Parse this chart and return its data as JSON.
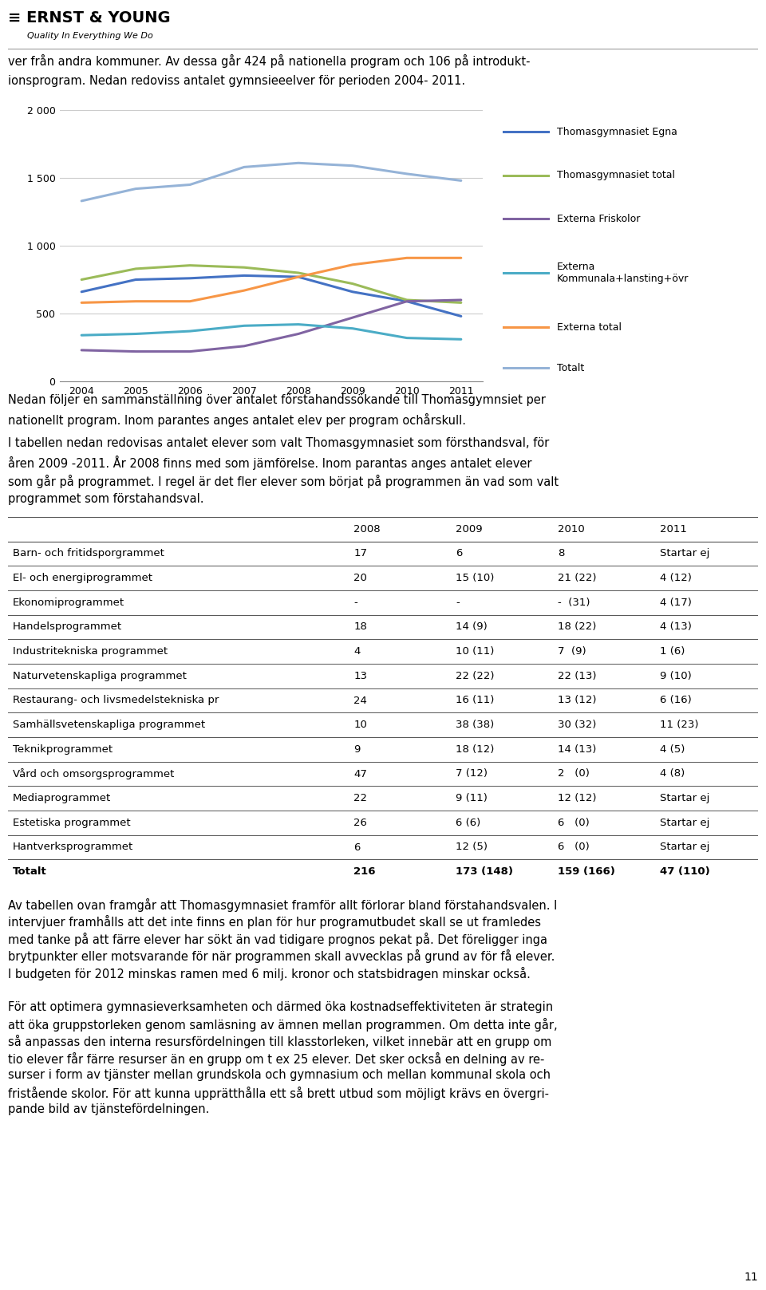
{
  "header_text1": "ver från andra kommuner. Av dessa går 424 på nationella program och 106 på introdukt-",
  "header_text2": "ionsprogram. Nedan redoviss antalet gymnsieeelver för perioden 2004- 2011.",
  "years": [
    2004,
    2005,
    2006,
    2007,
    2008,
    2009,
    2010,
    2011
  ],
  "series_order": [
    "Thomasgymnasiet Egna",
    "Thomasgymnasiet total",
    "Externa Friskolor",
    "Externa\nKommunala+lansting+övr",
    "Externa total",
    "Totalt"
  ],
  "series": {
    "Thomasgymnasiet Egna": {
      "values": [
        660,
        750,
        760,
        780,
        770,
        660,
        590,
        480
      ],
      "color": "#4472C4",
      "linewidth": 2.2
    },
    "Thomasgymnasiet total": {
      "values": [
        750,
        830,
        855,
        840,
        800,
        720,
        600,
        580
      ],
      "color": "#9BBB59",
      "linewidth": 2.2
    },
    "Externa Friskolor": {
      "values": [
        230,
        220,
        220,
        260,
        350,
        470,
        590,
        600
      ],
      "color": "#8064A2",
      "linewidth": 2.2
    },
    "Externa\nKommunala+lansting+övr": {
      "values": [
        340,
        350,
        370,
        410,
        420,
        390,
        320,
        310
      ],
      "color": "#4BACC6",
      "linewidth": 2.2
    },
    "Externa total": {
      "values": [
        580,
        590,
        590,
        670,
        770,
        860,
        910,
        910
      ],
      "color": "#F79646",
      "linewidth": 2.2
    },
    "Totalt": {
      "values": [
        1330,
        1420,
        1450,
        1580,
        1610,
        1590,
        1530,
        1480
      ],
      "color": "#95B3D7",
      "linewidth": 2.2
    }
  },
  "ylim": [
    0,
    2000
  ],
  "yticks": [
    0,
    500,
    1000,
    1500,
    2000
  ],
  "ytick_labels": [
    "0",
    "500",
    "1 000",
    "1 500",
    "2 000"
  ],
  "para_text1": "Nedan följer en sammanställning över antalet förstahandssökande till Thomasgymnsiet per",
  "para_text2": "nationellt program. Inom parantes anges antalet elev per program ochårskull.",
  "para_text3": "I tabellen nedan redovisas antalet elever som valt Thomasgymnasiet som försthandsval, för",
  "para_text4": "åren 2009 -2011. År 2008 finns med som jämförelse. Inom parantas anges antalet elever",
  "para_text5": "som går på programmet. I regel är det fler elever som börjat på programmen än vad som valt",
  "para_text6": "programmet som förstahandsval.",
  "table_headers": [
    "",
    "2008",
    "2009",
    "2010",
    "2011"
  ],
  "table_rows": [
    [
      "Barn- och fritidsporgrammet",
      "17",
      "6",
      "8",
      "Startar ej"
    ],
    [
      "El- och energiprogrammet",
      "20",
      "15 (10)",
      "21 (22)",
      "4 (12)"
    ],
    [
      "Ekonomiprogrammet",
      "-",
      "-",
      "-  (31)",
      "4 (17)"
    ],
    [
      "Handelsprogrammet",
      "18",
      "14 (9)",
      "18 (22)",
      "4 (13)"
    ],
    [
      "Industritekniska programmet",
      "4",
      "10 (11)",
      "7  (9)",
      "1 (6)"
    ],
    [
      "Naturvetenskapliga programmet",
      "13",
      "22 (22)",
      "22 (13)",
      "9 (10)"
    ],
    [
      "Restaurang- och livsmedelstekniska pr",
      "24",
      "16 (11)",
      "13 (12)",
      "6 (16)"
    ],
    [
      "Samhällsvetenskapliga programmet",
      "10",
      "38 (38)",
      "30 (32)",
      "11 (23)"
    ],
    [
      "Teknikprogrammet",
      "9",
      "18 (12)",
      "14 (13)",
      "4 (5)"
    ],
    [
      "Vård och omsorgsprogrammet",
      "47",
      "7 (12)",
      "2   (0)",
      "4 (8)"
    ],
    [
      "Mediaprogrammet",
      "22",
      "9 (11)",
      "12 (12)",
      "Startar ej"
    ],
    [
      "Estetiska programmet",
      "26",
      "6 (6)",
      "6   (0)",
      "Startar ej"
    ],
    [
      "Hantverksprogrammet",
      "6",
      "12 (5)",
      "6   (0)",
      "Startar ej"
    ],
    [
      "Totalt",
      "216",
      "173 (148)",
      "159 (166)",
      "47 (110)"
    ]
  ],
  "bottom_text": [
    "Av tabellen ovan framgår att Thomasgymnasiet framför allt förlorar bland förstahandsvalen. I",
    "intervjuer framhålls att det inte finns en plan för hur programutbudet skall se ut framledes",
    "med tanke på att färre elever har sökt än vad tidigare prognos pekat på. Det föreligger inga",
    "brytpunkter eller motsvarande för när programmen skall avvecklas på grund av för få elever.",
    "I budgeten för 2012 minskas ramen med 6 milj. kronor och statsbidragen minskar också.",
    "",
    "För att optimera gymnasieverksamheten och därmed öka kostnadseffektiviteten är strategin",
    "att öka gruppstorleken genom samläsning av ämnen mellan programmen. Om detta inte går,",
    "så anpassas den interna resursfördelningen till klasstorleken, vilket innebär att en grupp om",
    "tio elever får färre resurser än en grupp om t ex 25 elever. Det sker också en delning av re-",
    "surser i form av tjänster mellan grundskola och gymnasium och mellan kommunal skola och",
    "fristående skolor. För att kunna upprätthålla ett så brett utbud som möjligt krävs en övergri-",
    "pande bild av tjänstefördelningen."
  ],
  "page_number": "11",
  "bg_color": "#FFFFFF",
  "text_color": "#000000",
  "grid_color": "#CCCCCC",
  "border_color": "#888888"
}
